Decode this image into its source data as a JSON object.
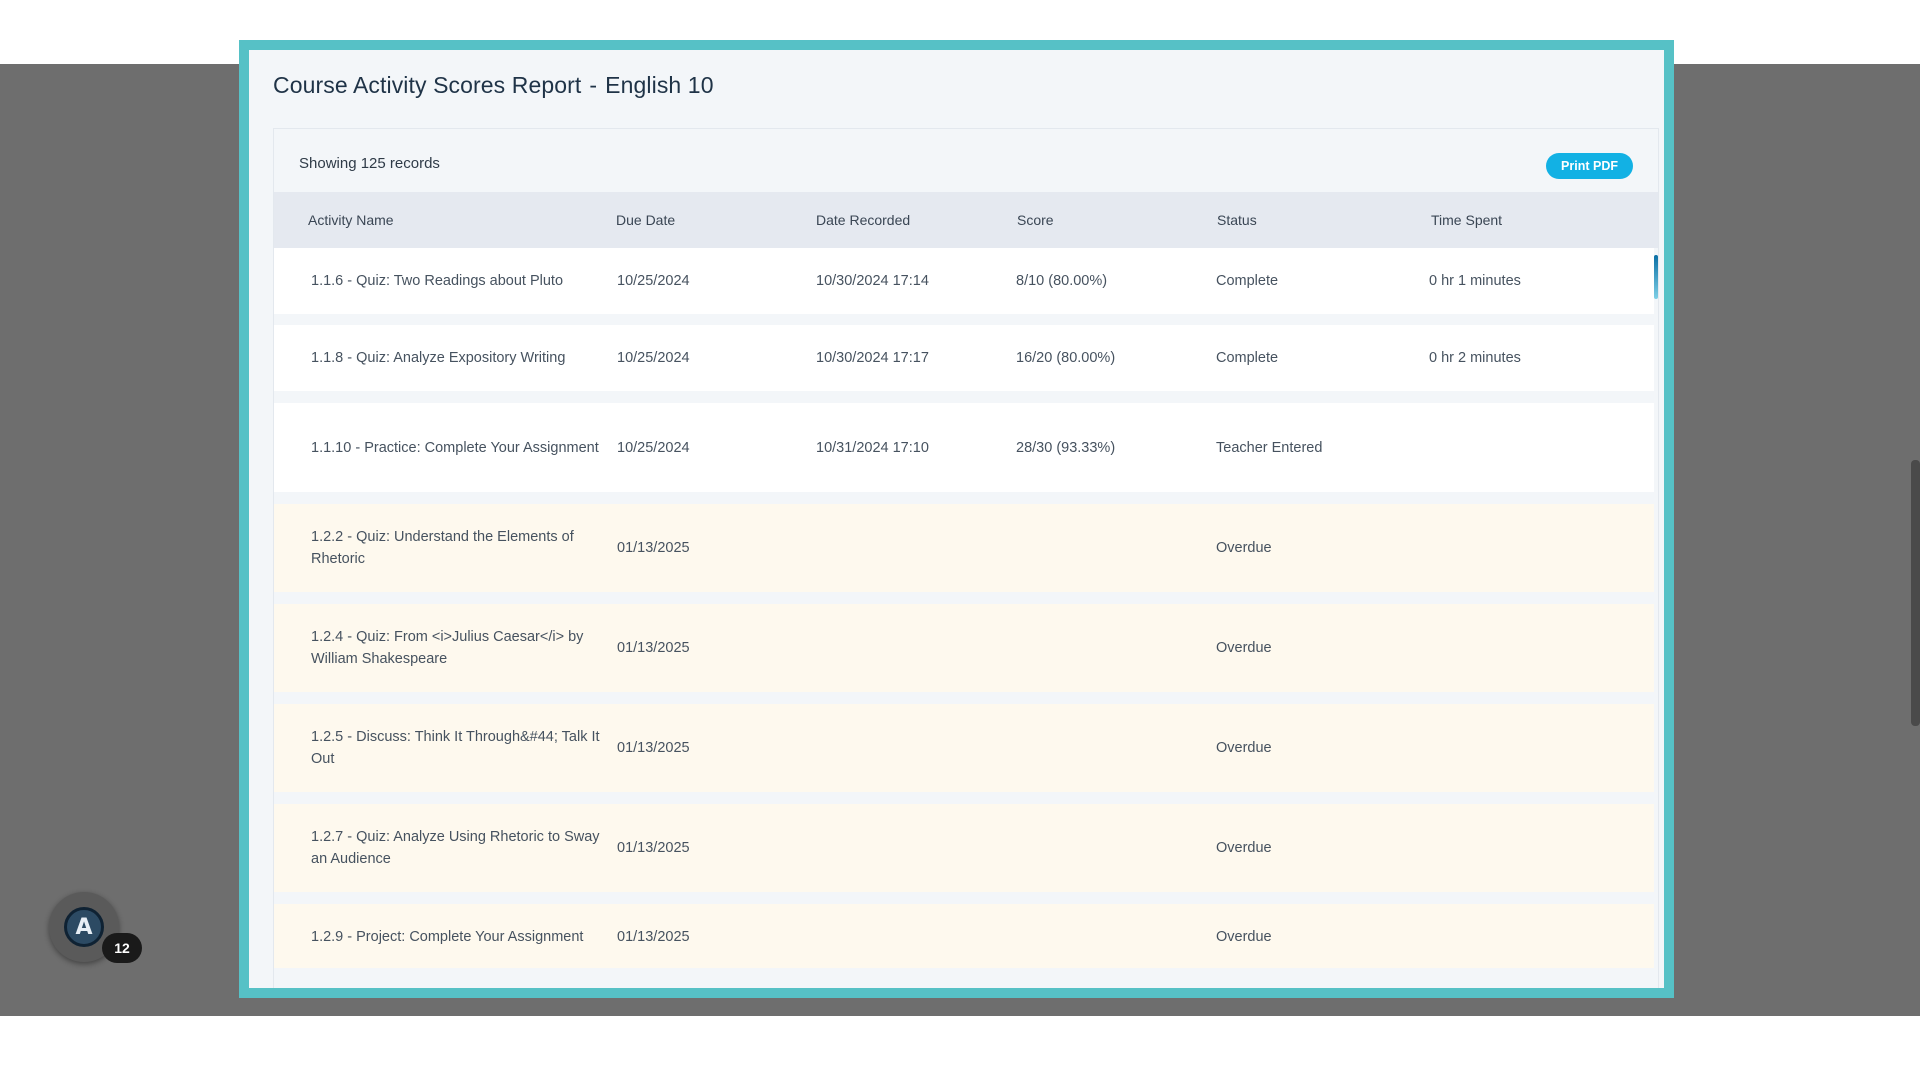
{
  "report": {
    "title": "Course Activity Scores Report",
    "separator": "-",
    "course": "English 10"
  },
  "toolbar": {
    "records_label": "Showing 125 records",
    "print_label": "Print PDF"
  },
  "table": {
    "columns": [
      "Activity Name",
      "Due Date",
      "Date Recorded",
      "Score",
      "Status",
      "Time Spent"
    ],
    "rows": [
      {
        "name": "1.1.6 - Quiz: Two Readings about Pluto",
        "due": "10/25/2024",
        "recorded": "10/30/2024 17:14",
        "score": "8/10 (80.00%)",
        "status": "Complete",
        "time": "0 hr 1 minutes"
      },
      {
        "name": "1.1.8 - Quiz: Analyze Expository Writing",
        "due": "10/25/2024",
        "recorded": "10/30/2024 17:17",
        "score": "16/20 (80.00%)",
        "status": "Complete",
        "time": "0 hr 2 minutes"
      },
      {
        "name": "1.1.10 - Practice: Complete Your Assignment",
        "due": "10/25/2024",
        "recorded": "10/31/2024 17:10",
        "score": "28/30 (93.33%)",
        "status": "Teacher Entered",
        "time": ""
      },
      {
        "name": "1.2.2 - Quiz: Understand the Elements of Rhetoric",
        "due": "01/13/2025",
        "recorded": "",
        "score": "",
        "status": "Overdue",
        "time": ""
      },
      {
        "name": "1.2.4 - Quiz: From <i>Julius Caesar</i> by William Shakespeare",
        "due": "01/13/2025",
        "recorded": "",
        "score": "",
        "status": "Overdue",
        "time": ""
      },
      {
        "name": "1.2.5 - Discuss: Think It Through&#44; Talk It Out",
        "due": "01/13/2025",
        "recorded": "",
        "score": "",
        "status": "Overdue",
        "time": ""
      },
      {
        "name": "1.2.7 - Quiz: Analyze Using Rhetoric to Sway an Audience",
        "due": "01/13/2025",
        "recorded": "",
        "score": "",
        "status": "Overdue",
        "time": ""
      },
      {
        "name": "1.2.9 - Project: Complete Your Assignment",
        "due": "01/13/2025",
        "recorded": "",
        "score": "",
        "status": "Overdue",
        "time": ""
      }
    ]
  },
  "widget": {
    "logo_letter": "A",
    "badge_count": "12"
  },
  "colors": {
    "modal_border": "#56c1c6",
    "accent_button": "#12b1e4",
    "overdue_row": "#fef9ee"
  }
}
